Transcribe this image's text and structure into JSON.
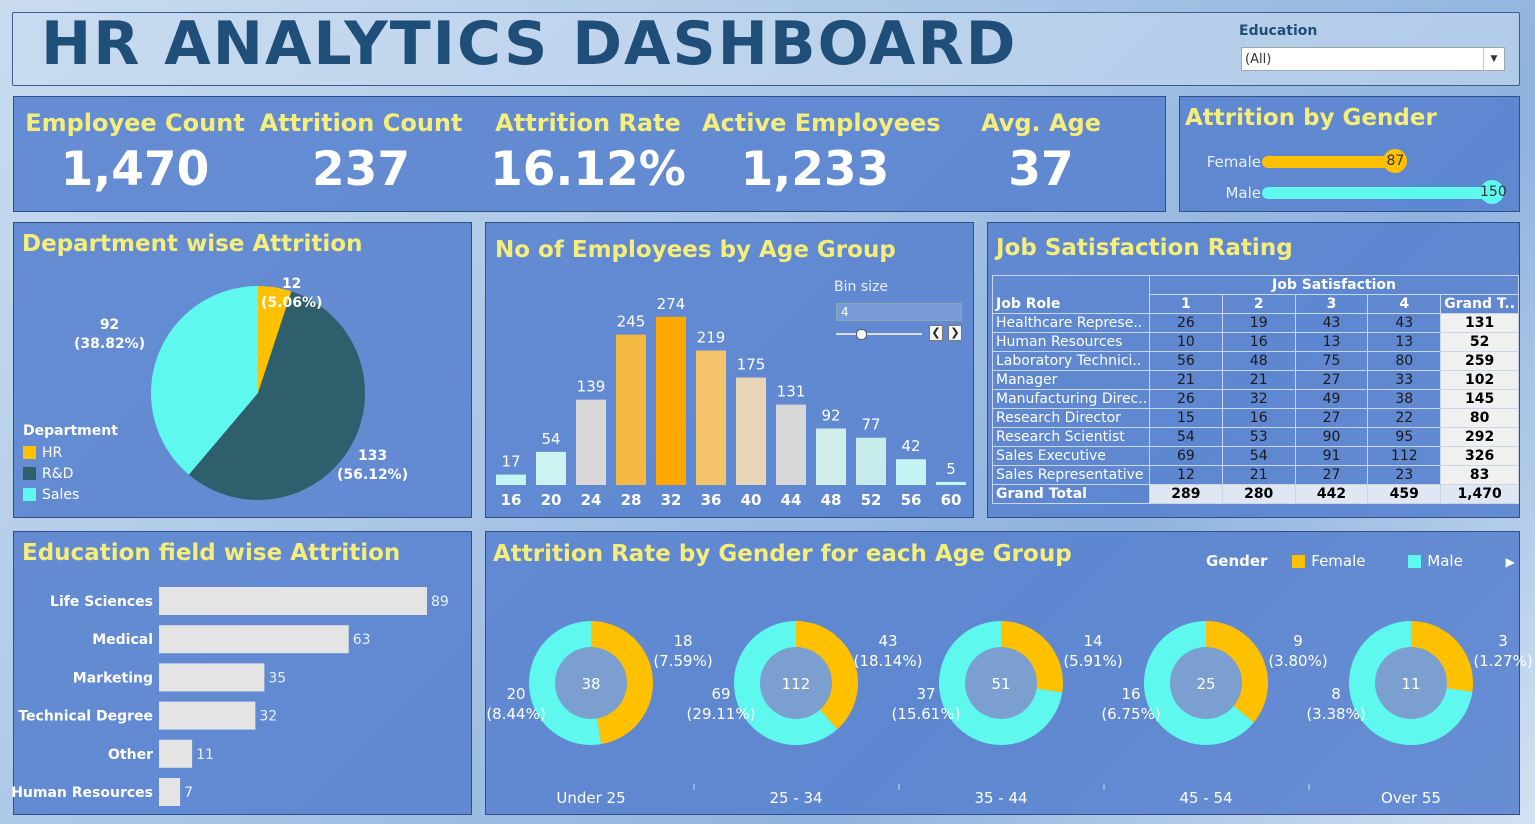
{
  "header": {
    "title": "HR ANALYTICS DASHBOARD",
    "filter_label": "Education",
    "filter_value": "(All)"
  },
  "kpis": [
    {
      "label": "Employee Count",
      "value": "1,470"
    },
    {
      "label": "Attrition Count",
      "value": "237"
    },
    {
      "label": "Attrition Rate",
      "value": "16.12%"
    },
    {
      "label": "Active Employees",
      "value": "1,233"
    },
    {
      "label": "Avg. Age",
      "value": "37"
    }
  ],
  "gender_attrition": {
    "title": "Attrition by Gender",
    "max": 150,
    "rows": [
      {
        "label": "Female",
        "value": 87,
        "value_text": "87",
        "color": "#ffc000"
      },
      {
        "label": "Male",
        "value": 150,
        "value_text": "150",
        "color": "#5ef8ee"
      }
    ]
  },
  "department": {
    "title": "Department wise Attrition",
    "legend_title": "Department",
    "legend": [
      "HR",
      "R&D",
      "Sales"
    ],
    "colors": [
      "#ffc000",
      "#2f5f6c",
      "#5ef8ee"
    ],
    "slices": [
      {
        "label": "HR",
        "value": 12,
        "line1": "12",
        "line2": "(5.06%)"
      },
      {
        "label": "R&D",
        "value": 133,
        "line1": "133",
        "line2": "(56.12%)"
      },
      {
        "label": "Sales",
        "value": 92,
        "line1": "92",
        "line2": "(38.82%)"
      }
    ]
  },
  "age_group": {
    "title": "No of Employees by Age Group",
    "bin_label": "Bin size",
    "bin_value": "4",
    "prev": "❮",
    "next": "❯"
  },
  "job_satisfaction": {
    "title": "Job Satisfaction Rating",
    "group_header": "Job Satisfaction",
    "row_header": "Job Role",
    "columns": [
      "1",
      "2",
      "3",
      "4",
      "Grand T.."
    ],
    "rows": [
      {
        "role": "Healthcare Represe..",
        "cells": [
          "26",
          "19",
          "43",
          "43",
          "131"
        ]
      },
      {
        "role": "Human Resources",
        "cells": [
          "10",
          "16",
          "13",
          "13",
          "52"
        ]
      },
      {
        "role": "Laboratory Technici..",
        "cells": [
          "56",
          "48",
          "75",
          "80",
          "259"
        ]
      },
      {
        "role": "Manager",
        "cells": [
          "21",
          "21",
          "27",
          "33",
          "102"
        ]
      },
      {
        "role": "Manufacturing Direc..",
        "cells": [
          "26",
          "32",
          "49",
          "38",
          "145"
        ]
      },
      {
        "role": "Research Director",
        "cells": [
          "15",
          "16",
          "27",
          "22",
          "80"
        ]
      },
      {
        "role": "Research Scientist",
        "cells": [
          "54",
          "53",
          "90",
          "95",
          "292"
        ]
      },
      {
        "role": "Sales Executive",
        "cells": [
          "69",
          "54",
          "91",
          "112",
          "326"
        ]
      },
      {
        "role": "Sales Representative",
        "cells": [
          "12",
          "21",
          "27",
          "23",
          "83"
        ]
      }
    ],
    "total": {
      "role": "Grand Total",
      "cells": [
        "289",
        "280",
        "442",
        "459",
        "1,470"
      ]
    }
  },
  "education_field": {
    "title": "Education field wise Attrition"
  },
  "gender_age": {
    "title": "Attrition Rate by Gender for each Age Group",
    "legend_title": "Gender",
    "legend": [
      "Female",
      "Male"
    ],
    "colors": [
      "#ffc000",
      "#5ef8ee"
    ],
    "next": "▶"
  },
  "chart_data": [
    {
      "type": "bar",
      "title": "No of Employees by Age Group",
      "categories": [
        "16",
        "20",
        "24",
        "28",
        "32",
        "36",
        "40",
        "44",
        "48",
        "52",
        "56",
        "60"
      ],
      "values": [
        17,
        54,
        139,
        245,
        274,
        219,
        175,
        131,
        92,
        77,
        42,
        5
      ],
      "colors": [
        "#c2f5f4",
        "#cdf2f2",
        "#d8d8d8",
        "#f4b942",
        "#ffa800",
        "#f3c46a",
        "#e8d5b5",
        "#d8d8d8",
        "#cfeee9",
        "#c7ebea",
        "#c5f2f3",
        "#bff6f6"
      ],
      "ylim": [
        0,
        290
      ]
    },
    {
      "type": "bar",
      "orientation": "horizontal",
      "title": "Education field wise Attrition",
      "categories": [
        "Life Sciences",
        "Medical",
        "Marketing",
        "Technical Degree",
        "Other",
        "Human Resources"
      ],
      "values": [
        89,
        63,
        35,
        32,
        11,
        7
      ],
      "color": "#e4e4e4",
      "xlim": [
        0,
        89
      ]
    },
    {
      "type": "pie",
      "title": "Attrition Rate by Gender for each Age Group",
      "groups": [
        {
          "name": "Under 25",
          "center": "38",
          "female": 18,
          "male": 20,
          "female_line1": "18",
          "female_line2": "(7.59%)",
          "male_line1": "20",
          "male_line2": "(8.44%)"
        },
        {
          "name": "25 - 34",
          "center": "112",
          "female": 43,
          "male": 69,
          "female_line1": "43",
          "female_line2": "(18.14%)",
          "male_line1": "69",
          "male_line2": "(29.11%)"
        },
        {
          "name": "35 - 44",
          "center": "51",
          "female": 14,
          "male": 37,
          "female_line1": "14",
          "female_line2": "(5.91%)",
          "male_line1": "37",
          "male_line2": "(15.61%)"
        },
        {
          "name": "45 - 54",
          "center": "25",
          "female": 9,
          "male": 16,
          "female_line1": "9",
          "female_line2": "(3.80%)",
          "male_line1": "16",
          "male_line2": "(6.75%)"
        },
        {
          "name": "Over 55",
          "center": "11",
          "female": 3,
          "male": 8,
          "female_line1": "3",
          "female_line2": "(1.27%)",
          "male_line1": "8",
          "male_line2": "(3.38%)"
        }
      ]
    }
  ]
}
